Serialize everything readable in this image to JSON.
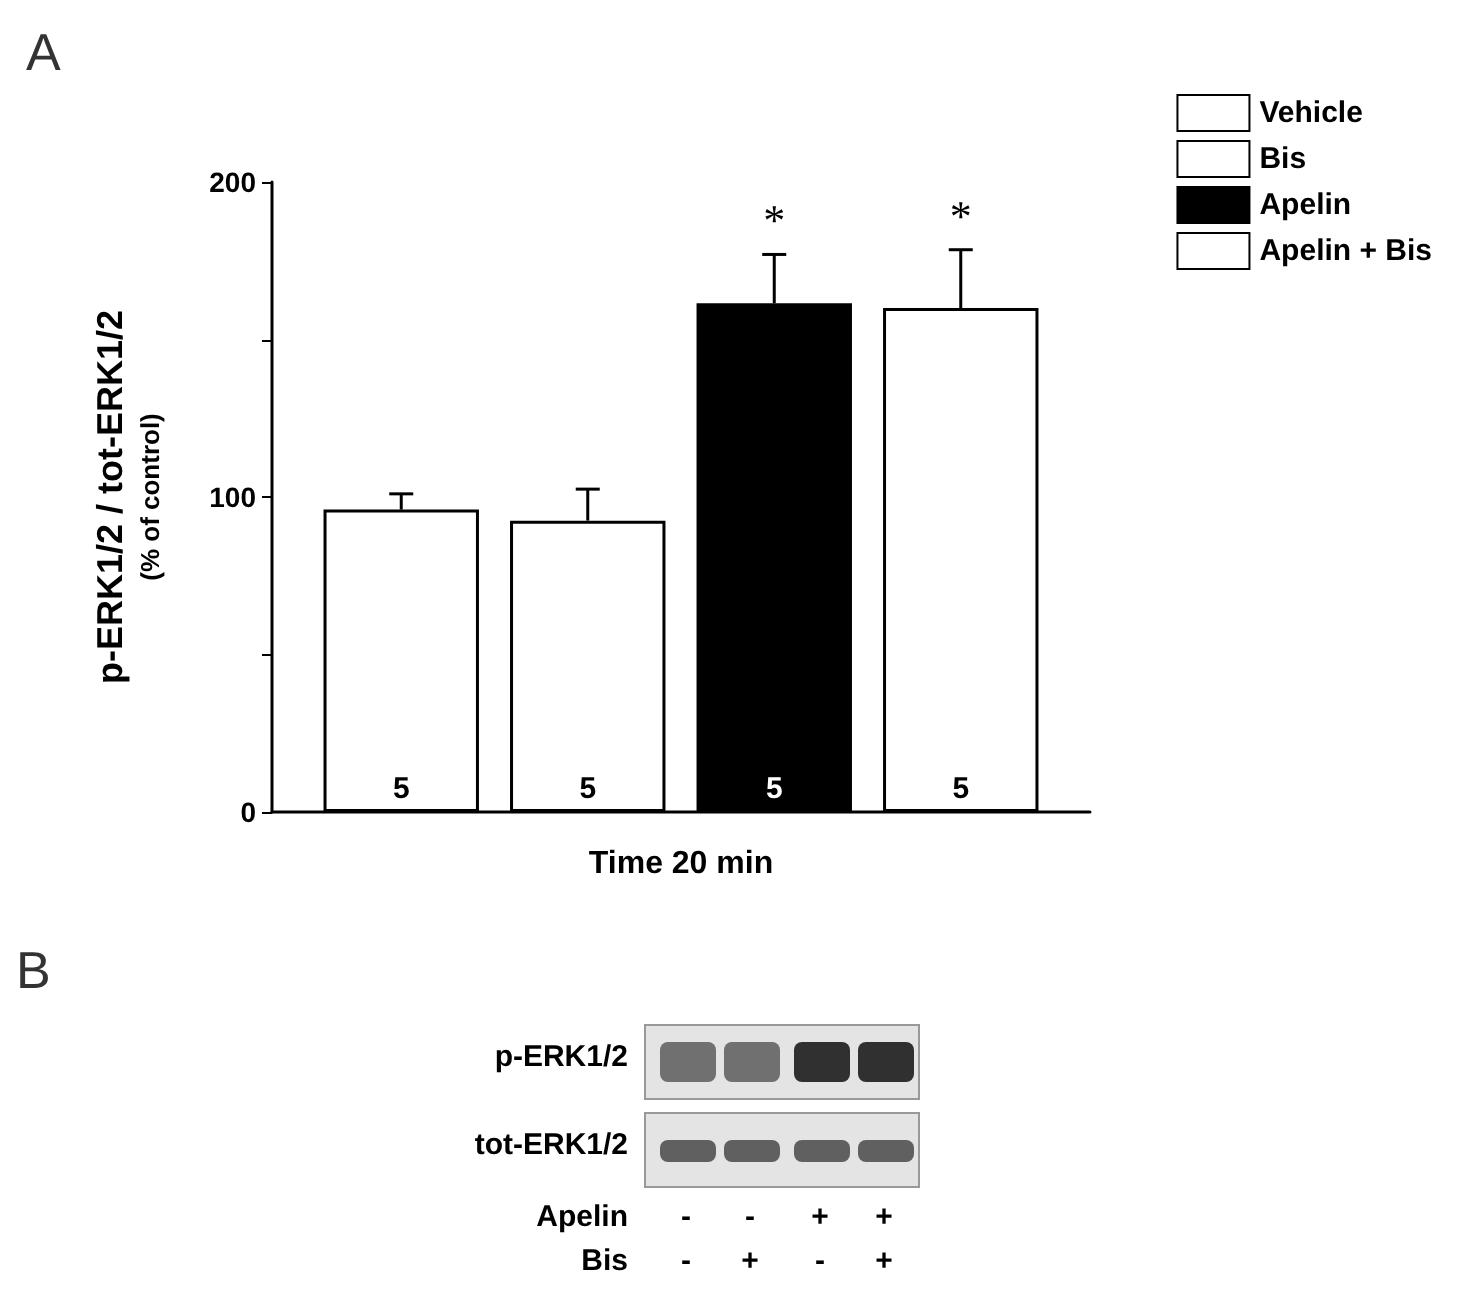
{
  "chart_data": [
    {
      "type": "bar",
      "title": "A",
      "categories": [
        null
      ],
      "xlabel": "Time 20 min",
      "ylabel": "p-ERK1/2 / tot-ERK1/2\n(% of control)",
      "series": [
        {
          "name": "Vehicle",
          "color": "#ffffff",
          "values": [
            96
          ],
          "errors": [
            [
              96,
              101
            ]
          ]
        },
        {
          "name": "Bis",
          "color": "#ffffff",
          "values": [
            92.5
          ],
          "errors": [
            [
              92.5,
              102.5
            ]
          ]
        },
        {
          "name": "Apelin",
          "color": "#000000",
          "values": [
            161.5
          ],
          "errors": [
            [
              161.5,
              177
            ]
          ]
        },
        {
          "name": "Apelin + Bis",
          "color": "#ffffff",
          "values": [
            160
          ],
          "errors": [
            [
              160,
              178.5
            ]
          ]
        }
      ],
      "ylim": [
        0,
        200
      ],
      "yticks": [
        0,
        {
          "value": 50,
          "label": null
        },
        100,
        {
          "value": 150,
          "label": null
        },
        200
      ],
      "grid": false,
      "legend": "top right",
      "tick_labels": "y",
      "annotations": [
        "5",
        "5",
        "5",
        "5",
        "*",
        "*"
      ]
    },
    {
      "type": "other",
      "title": "B",
      "annotations": [
        "p-ERK1/2",
        "tot-ERK1/2",
        "Apelin",
        "-",
        "-",
        "+",
        "+",
        "Bis",
        "-",
        "+",
        "-",
        "+"
      ]
    }
  ]
}
